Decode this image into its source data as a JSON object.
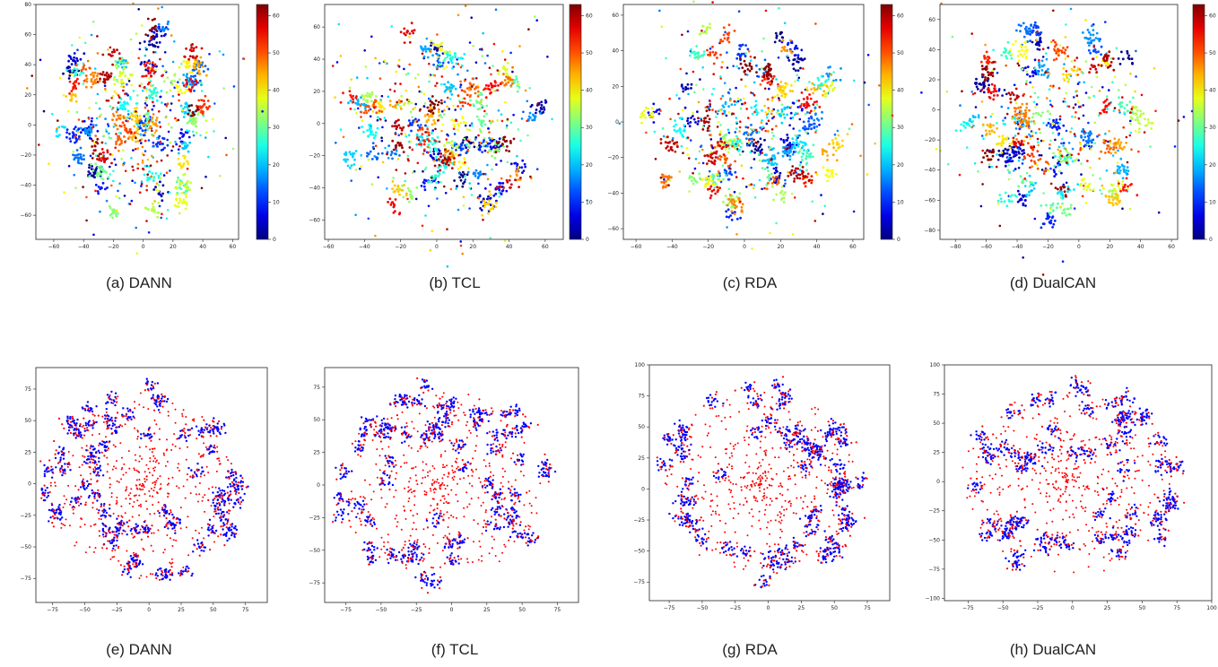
{
  "captions": {
    "a": "(a) DANN",
    "b": "(b) TCL",
    "c": "(c) RDA",
    "d": "(d) DualCAN",
    "e": "(e) DANN",
    "f": "(f) TCL",
    "g": "(g) RDA",
    "h": "(h) DualCAN"
  },
  "chart_data": [
    {
      "id": "a",
      "type": "scatter",
      "title": "",
      "xlabel": "",
      "ylabel": "",
      "xlim": [
        -72,
        64
      ],
      "ylim": [
        -76,
        80
      ],
      "xticks": [
        -60,
        -40,
        -20,
        0,
        20,
        40,
        60
      ],
      "yticks": [
        -60,
        -40,
        -20,
        0,
        20,
        40,
        60,
        80
      ],
      "colorbar": {
        "min": 0,
        "max": 63,
        "ticks": [
          0,
          10,
          20,
          30,
          40,
          50,
          60
        ],
        "colormap": "jet"
      },
      "grid": false,
      "legend": "none"
    },
    {
      "id": "b",
      "type": "scatter",
      "title": "",
      "xlabel": "",
      "ylabel": "",
      "xlim": [
        -62,
        70
      ],
      "ylim": [
        -72,
        74
      ],
      "xticks": [
        -60,
        -40,
        -20,
        0,
        20,
        40,
        60
      ],
      "yticks": [
        -60,
        -40,
        -20,
        0,
        20,
        40,
        60
      ],
      "colorbar": {
        "min": 0,
        "max": 63,
        "ticks": [
          0,
          10,
          20,
          30,
          40,
          50,
          60
        ],
        "colormap": "jet"
      },
      "grid": false,
      "legend": "none"
    },
    {
      "id": "c",
      "type": "scatter",
      "title": "",
      "xlabel": "",
      "ylabel": "",
      "xlim": [
        -67,
        66
      ],
      "ylim": [
        -66,
        66
      ],
      "xticks": [
        -60,
        -40,
        -20,
        0,
        20,
        40,
        60
      ],
      "yticks": [
        -60,
        -40,
        -20,
        0,
        20,
        40,
        60
      ],
      "colorbar": {
        "min": 0,
        "max": 63,
        "ticks": [
          0,
          10,
          20,
          30,
          40,
          50,
          60
        ],
        "colormap": "jet"
      },
      "grid": false,
      "legend": "none"
    },
    {
      "id": "d",
      "type": "scatter",
      "title": "",
      "xlabel": "",
      "ylabel": "",
      "xlim": [
        -90,
        64
      ],
      "ylim": [
        -86,
        70
      ],
      "xticks": [
        -80,
        -60,
        -40,
        -20,
        0,
        20,
        40,
        60
      ],
      "yticks": [
        -80,
        -60,
        -40,
        -20,
        0,
        20,
        40,
        60
      ],
      "colorbar": {
        "min": 0,
        "max": 63,
        "ticks": [
          0,
          10,
          20,
          30,
          40,
          50,
          60
        ],
        "colormap": "jet"
      },
      "grid": false,
      "legend": "none"
    },
    {
      "id": "e",
      "type": "scatter",
      "title": "",
      "xlabel": "",
      "ylabel": "",
      "xlim": [
        -88,
        92
      ],
      "ylim": [
        -94,
        92
      ],
      "xticks": [
        -75,
        -50,
        -25,
        0,
        25,
        50,
        75
      ],
      "yticks": [
        -75,
        -50,
        -25,
        0,
        25,
        50,
        75
      ],
      "series_colors": [
        "#ff0000",
        "#0000ff"
      ],
      "grid": false,
      "legend": "none"
    },
    {
      "id": "f",
      "type": "scatter",
      "title": "",
      "xlabel": "",
      "ylabel": "",
      "xlim": [
        -90,
        90
      ],
      "ylim": [
        -90,
        90
      ],
      "xticks": [
        -75,
        -50,
        -25,
        0,
        25,
        50,
        75
      ],
      "yticks": [
        -75,
        -50,
        -25,
        0,
        25,
        50,
        75
      ],
      "series_colors": [
        "#ff0000",
        "#0000ff"
      ],
      "grid": false,
      "legend": "none"
    },
    {
      "id": "g",
      "type": "scatter",
      "title": "",
      "xlabel": "",
      "ylabel": "",
      "xlim": [
        -90,
        92
      ],
      "ylim": [
        -90,
        100
      ],
      "xticks": [
        -75,
        -50,
        -25,
        0,
        25,
        50,
        75
      ],
      "yticks": [
        -75,
        -50,
        -25,
        0,
        25,
        50,
        75,
        100
      ],
      "series_colors": [
        "#ff0000",
        "#0000ff"
      ],
      "grid": false,
      "legend": "none"
    },
    {
      "id": "h",
      "type": "scatter",
      "title": "",
      "xlabel": "",
      "ylabel": "",
      "xlim": [
        -92,
        100
      ],
      "ylim": [
        -102,
        100
      ],
      "xticks": [
        -75,
        -50,
        -25,
        0,
        25,
        50,
        75,
        100
      ],
      "yticks": [
        -100,
        -75,
        -50,
        -25,
        0,
        25,
        50,
        75,
        100
      ],
      "series_colors": [
        "#ff0000",
        "#0000ff"
      ],
      "grid": false,
      "legend": "none"
    }
  ]
}
